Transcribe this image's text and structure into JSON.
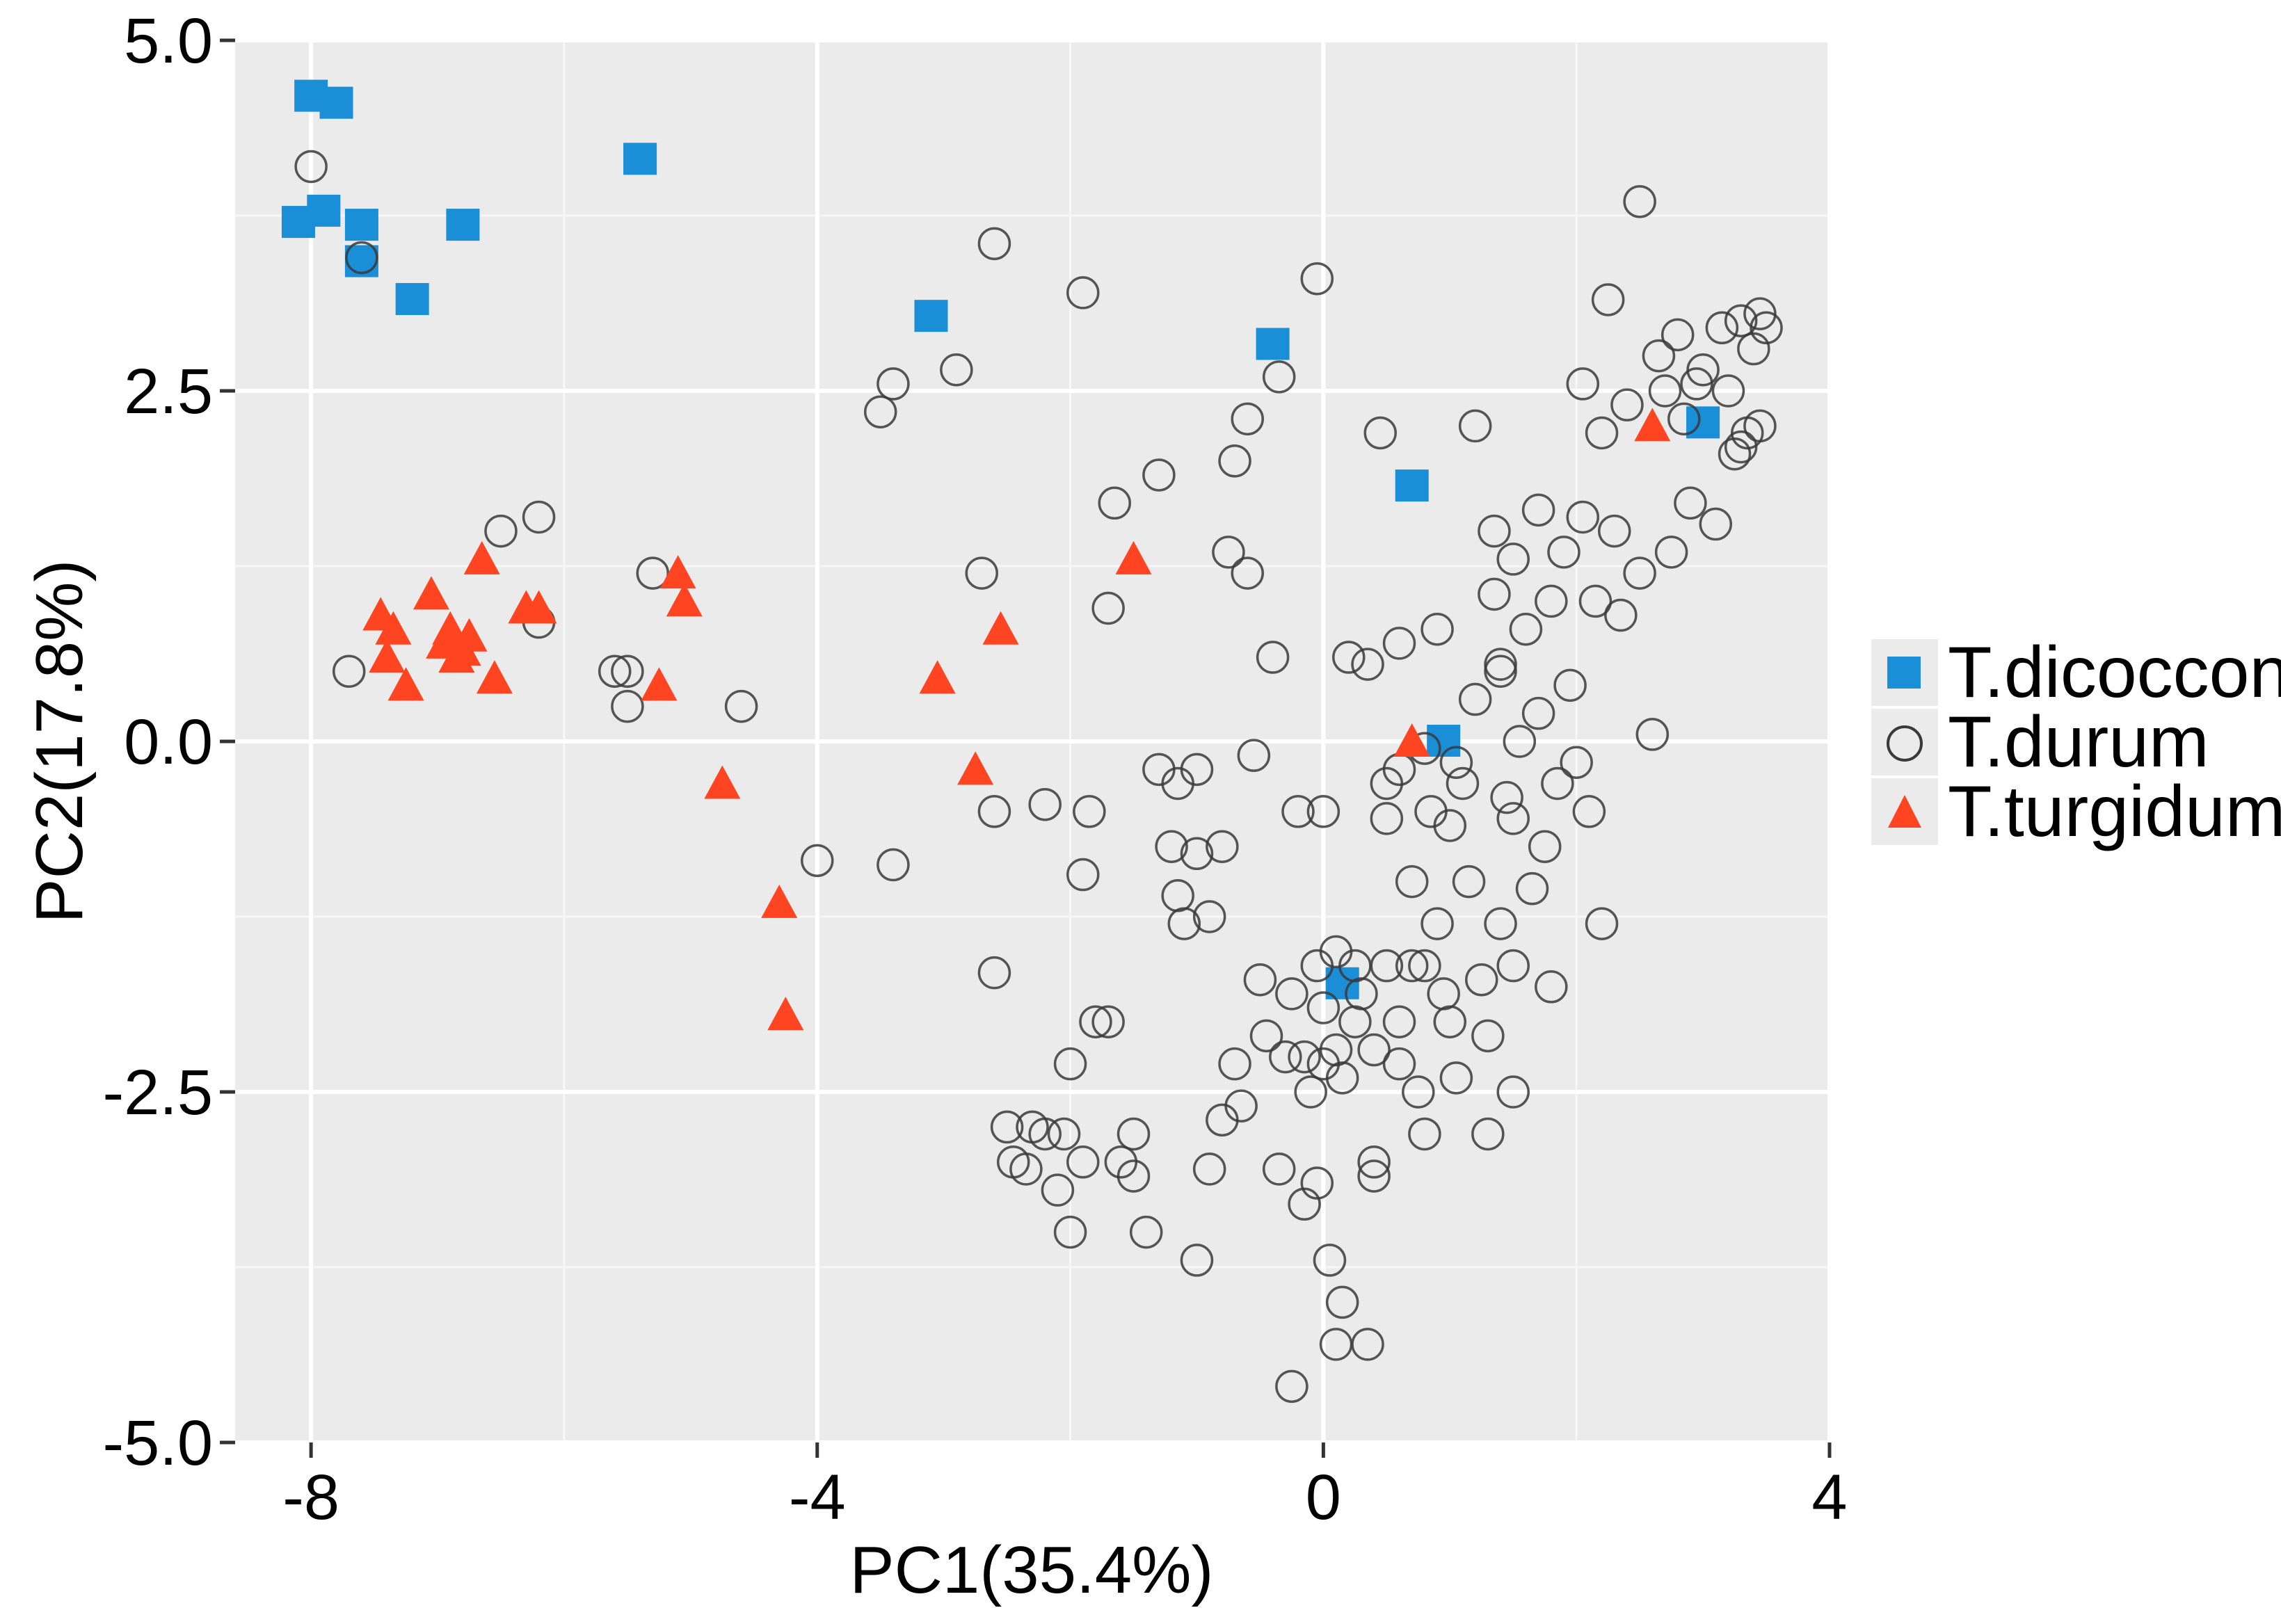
{
  "chart_data": {
    "type": "scatter",
    "title": "",
    "xlabel": "PC1(35.4%)",
    "ylabel": "PC2(17.8%)",
    "xlim": [
      -8.6,
      4.0
    ],
    "ylim": [
      -5.0,
      5.0
    ],
    "x_ticks": [
      -8,
      -4,
      0,
      4
    ],
    "x_tick_labels": [
      "-8",
      "-4",
      "0",
      "4"
    ],
    "y_ticks": [
      5.0,
      2.5,
      0.0,
      -2.5,
      -5.0
    ],
    "y_tick_labels": [
      "5.0",
      "2.5",
      "0.0",
      "-2.5",
      "-5.0"
    ],
    "grid": true,
    "legend_position": "right",
    "series": [
      {
        "name": "T.dicoccon",
        "marker": "square",
        "color": "#1a8ed6",
        "points": [
          [
            -8.0,
            4.6
          ],
          [
            -7.8,
            4.55
          ],
          [
            -8.1,
            3.7
          ],
          [
            -7.9,
            3.78
          ],
          [
            -7.6,
            3.68
          ],
          [
            -7.6,
            3.42
          ],
          [
            -7.2,
            3.15
          ],
          [
            -6.8,
            3.68
          ],
          [
            -5.4,
            4.15
          ],
          [
            -3.1,
            3.03
          ],
          [
            -0.4,
            2.83
          ],
          [
            0.7,
            1.82
          ],
          [
            3.0,
            2.27
          ],
          [
            0.95,
            0.0
          ],
          [
            0.15,
            -1.73
          ]
        ]
      },
      {
        "name": "T.durum",
        "marker": "circle-open",
        "color": "#3a3a3a",
        "points": [
          [
            -8.0,
            4.1
          ],
          [
            -7.6,
            3.45
          ],
          [
            -7.7,
            0.5
          ],
          [
            -6.5,
            1.5
          ],
          [
            -6.2,
            1.6
          ],
          [
            -6.2,
            0.85
          ],
          [
            -5.6,
            0.5
          ],
          [
            -5.5,
            0.5
          ],
          [
            -5.5,
            0.25
          ],
          [
            -5.3,
            1.2
          ],
          [
            -4.6,
            0.25
          ],
          [
            -4.0,
            -0.85
          ],
          [
            -3.5,
            2.35
          ],
          [
            -3.4,
            2.55
          ],
          [
            -3.4,
            -0.88
          ],
          [
            -2.9,
            2.65
          ],
          [
            -2.7,
            1.2
          ],
          [
            -2.6,
            3.55
          ],
          [
            -2.6,
            -0.5
          ],
          [
            -2.6,
            -1.65
          ],
          [
            -2.5,
            -2.75
          ],
          [
            -2.45,
            -3.0
          ],
          [
            -2.35,
            -3.05
          ],
          [
            -2.3,
            -2.75
          ],
          [
            -2.2,
            -2.8
          ],
          [
            -2.2,
            -0.45
          ],
          [
            -2.1,
            -3.2
          ],
          [
            -2.05,
            -2.8
          ],
          [
            -2.0,
            -2.3
          ],
          [
            -2.0,
            -3.5
          ],
          [
            -1.9,
            -0.95
          ],
          [
            -1.9,
            -3.0
          ],
          [
            -1.85,
            -0.5
          ],
          [
            -1.8,
            -2.0
          ],
          [
            -1.9,
            3.2
          ],
          [
            -1.7,
            -2.0
          ],
          [
            -1.7,
            0.95
          ],
          [
            -1.65,
            1.7
          ],
          [
            -1.6,
            -3.0
          ],
          [
            -1.5,
            -2.8
          ],
          [
            -1.5,
            -3.1
          ],
          [
            -1.4,
            -3.5
          ],
          [
            -1.3,
            -0.2
          ],
          [
            -1.3,
            1.9
          ],
          [
            -1.2,
            -0.75
          ],
          [
            -1.15,
            -0.3
          ],
          [
            -1.15,
            -1.1
          ],
          [
            -1.1,
            -1.3
          ],
          [
            -1.0,
            -0.8
          ],
          [
            -1.0,
            -0.2
          ],
          [
            -1.0,
            -3.7
          ],
          [
            -0.9,
            -1.25
          ],
          [
            -0.9,
            -3.05
          ],
          [
            -0.8,
            -0.75
          ],
          [
            -0.8,
            -2.7
          ],
          [
            -0.75,
            1.35
          ],
          [
            -0.7,
            2.0
          ],
          [
            -0.7,
            -2.3
          ],
          [
            -0.65,
            -2.6
          ],
          [
            -0.6,
            1.2
          ],
          [
            -0.6,
            2.3
          ],
          [
            -0.55,
            -0.1
          ],
          [
            -0.5,
            -1.7
          ],
          [
            -0.45,
            -2.1
          ],
          [
            -0.4,
            0.6
          ],
          [
            -0.35,
            -3.05
          ],
          [
            -0.35,
            2.6
          ],
          [
            -0.3,
            -2.25
          ],
          [
            -0.25,
            -1.8
          ],
          [
            -0.25,
            -4.6
          ],
          [
            -0.2,
            -0.5
          ],
          [
            -0.15,
            -2.25
          ],
          [
            -0.15,
            -3.3
          ],
          [
            -0.1,
            -2.5
          ],
          [
            -0.05,
            -1.6
          ],
          [
            -0.05,
            -3.15
          ],
          [
            -0.05,
            3.3
          ],
          [
            0.0,
            -0.5
          ],
          [
            0.0,
            -2.3
          ],
          [
            0.0,
            -1.9
          ],
          [
            0.05,
            -3.7
          ],
          [
            0.1,
            -1.5
          ],
          [
            0.1,
            -2.2
          ],
          [
            0.1,
            -4.3
          ],
          [
            0.15,
            -2.4
          ],
          [
            0.15,
            -4.0
          ],
          [
            0.2,
            0.6
          ],
          [
            0.25,
            -1.6
          ],
          [
            0.25,
            -2.0
          ],
          [
            0.3,
            -1.8
          ],
          [
            0.35,
            -4.3
          ],
          [
            0.35,
            0.55
          ],
          [
            0.4,
            -2.2
          ],
          [
            0.4,
            -3.0
          ],
          [
            0.45,
            2.2
          ],
          [
            0.4,
            -3.1
          ],
          [
            0.5,
            -1.6
          ],
          [
            0.5,
            -0.3
          ],
          [
            0.5,
            -0.55
          ],
          [
            0.6,
            -0.2
          ],
          [
            0.6,
            0.7
          ],
          [
            0.6,
            -2.0
          ],
          [
            0.6,
            -2.3
          ],
          [
            0.7,
            -1.0
          ],
          [
            0.7,
            -1.6
          ],
          [
            0.75,
            -2.5
          ],
          [
            0.8,
            -0.05
          ],
          [
            0.8,
            -2.8
          ],
          [
            0.85,
            -0.5
          ],
          [
            0.9,
            0.8
          ],
          [
            0.9,
            -1.3
          ],
          [
            0.95,
            -1.8
          ],
          [
            1.0,
            -0.6
          ],
          [
            1.0,
            -2.0
          ],
          [
            1.05,
            -2.4
          ],
          [
            1.1,
            -0.3
          ],
          [
            1.15,
            -1.0
          ],
          [
            1.2,
            0.3
          ],
          [
            1.2,
            2.25
          ],
          [
            1.25,
            -1.7
          ],
          [
            1.3,
            -2.1
          ],
          [
            1.3,
            -2.8
          ],
          [
            1.35,
            1.05
          ],
          [
            1.35,
            1.5
          ],
          [
            1.4,
            0.5
          ],
          [
            1.4,
            -1.3
          ],
          [
            1.45,
            -0.4
          ],
          [
            1.5,
            1.3
          ],
          [
            1.5,
            -1.6
          ],
          [
            1.5,
            -2.5
          ],
          [
            1.55,
            0.0
          ],
          [
            1.6,
            0.8
          ],
          [
            1.65,
            -1.05
          ],
          [
            1.7,
            1.65
          ],
          [
            1.7,
            0.2
          ],
          [
            1.75,
            -0.75
          ],
          [
            1.8,
            1.0
          ],
          [
            1.8,
            -1.75
          ],
          [
            1.85,
            -0.3
          ],
          [
            1.9,
            1.35
          ],
          [
            1.95,
            0.4
          ],
          [
            2.0,
            -0.15
          ],
          [
            2.05,
            1.6
          ],
          [
            2.1,
            -0.5
          ],
          [
            2.15,
            1.0
          ],
          [
            2.2,
            2.2
          ],
          [
            2.2,
            -1.3
          ],
          [
            2.25,
            3.15
          ],
          [
            2.3,
            1.5
          ],
          [
            2.35,
            0.9
          ],
          [
            2.4,
            2.4
          ],
          [
            2.5,
            1.2
          ],
          [
            2.6,
            0.05
          ],
          [
            2.7,
            2.5
          ],
          [
            2.75,
            1.35
          ],
          [
            2.8,
            2.9
          ],
          [
            2.85,
            2.3
          ],
          [
            2.9,
            1.7
          ],
          [
            2.95,
            2.55
          ],
          [
            3.0,
            2.65
          ],
          [
            3.1,
            1.55
          ],
          [
            3.15,
            2.95
          ],
          [
            3.2,
            2.5
          ],
          [
            3.25,
            2.05
          ],
          [
            3.3,
            3.0
          ],
          [
            3.35,
            2.2
          ],
          [
            3.4,
            2.8
          ],
          [
            3.45,
            3.05
          ],
          [
            3.5,
            2.95
          ],
          [
            3.45,
            2.25
          ],
          [
            2.5,
            3.85
          ],
          [
            1.5,
            -0.55
          ],
          [
            2.65,
            2.75
          ],
          [
            3.3,
            2.1
          ],
          [
            2.05,
            2.55
          ],
          [
            1.4,
            0.55
          ],
          [
            1.05,
            -0.15
          ],
          [
            0.8,
            -1.6
          ]
        ]
      },
      {
        "name": "T.turgidum",
        "marker": "triangle",
        "color": "#ff4422",
        "points": [
          [
            -7.45,
            0.9
          ],
          [
            -7.35,
            0.8
          ],
          [
            -7.4,
            0.6
          ],
          [
            -7.25,
            0.4
          ],
          [
            -7.05,
            1.05
          ],
          [
            -6.95,
            0.7
          ],
          [
            -6.9,
            0.8
          ],
          [
            -6.8,
            0.65
          ],
          [
            -6.75,
            0.75
          ],
          [
            -6.85,
            0.6
          ],
          [
            -6.65,
            1.3
          ],
          [
            -6.55,
            0.45
          ],
          [
            -6.3,
            0.95
          ],
          [
            -6.2,
            0.95
          ],
          [
            -5.25,
            0.4
          ],
          [
            -5.1,
            1.2
          ],
          [
            -5.05,
            1.0
          ],
          [
            -4.75,
            -0.3
          ],
          [
            -4.3,
            -1.15
          ],
          [
            -4.25,
            -1.95
          ],
          [
            -3.05,
            0.45
          ],
          [
            -2.75,
            -0.2
          ],
          [
            -2.55,
            0.8
          ],
          [
            -1.5,
            1.3
          ],
          [
            0.7,
            0.0
          ],
          [
            2.6,
            2.25
          ]
        ]
      }
    ]
  }
}
